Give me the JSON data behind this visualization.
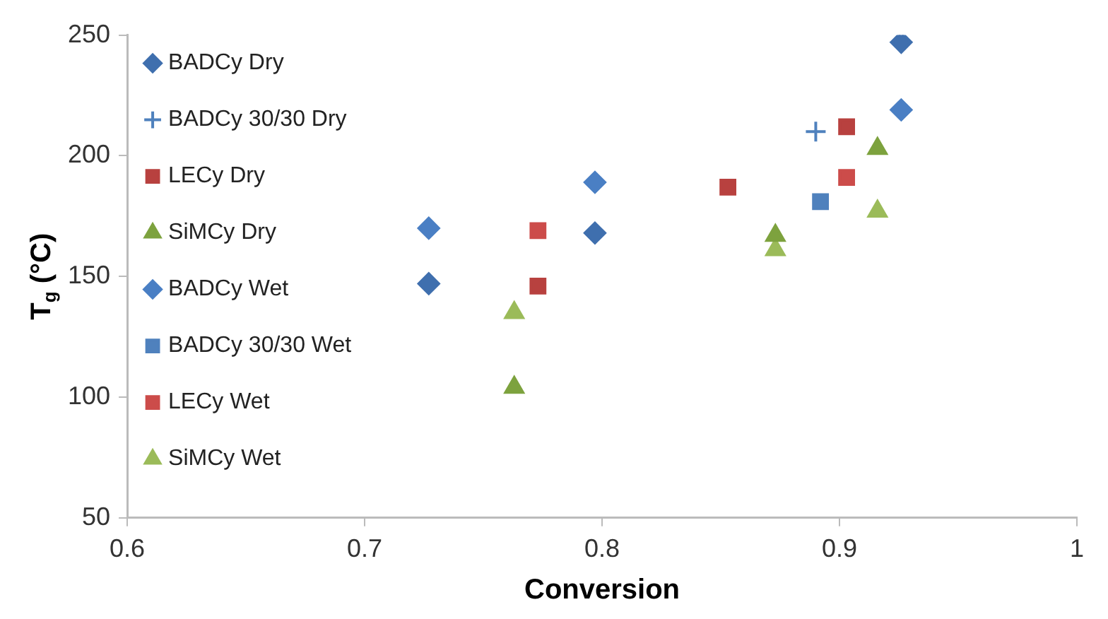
{
  "chart_data": {
    "type": "scatter",
    "xlabel": "Conversion",
    "ylabel": "T$_{g}$ (°C)",
    "xlim": [
      0.6,
      1
    ],
    "xticks": [
      0.6,
      0.7,
      0.8,
      0.9,
      1
    ],
    "ylim": [
      50,
      250
    ],
    "yticks": [
      50,
      100,
      150,
      200,
      250
    ],
    "grid": false,
    "legend": "top left",
    "series": [
      {
        "name": "BADCy Dry",
        "color": "#3f6fae",
        "marker": "diamond",
        "x": [
          0.727,
          0.797,
          0.926
        ],
        "values": [
          147,
          168,
          247
        ]
      },
      {
        "name": "BADCy 30/30 Dry",
        "color": "#4f81bd",
        "marker": "cross",
        "x": [
          0.89
        ],
        "values": [
          210
        ]
      },
      {
        "name": "LECy Dry",
        "color": "#b8413f",
        "marker": "square",
        "x": [
          0.773,
          0.853,
          0.903
        ],
        "values": [
          146,
          187,
          212
        ]
      },
      {
        "name": "SiMCy Dry",
        "color": "#7da23e",
        "marker": "triangle",
        "x": [
          0.763,
          0.873,
          0.916
        ],
        "values": [
          104,
          167,
          203
        ]
      },
      {
        "name": "BADCy Wet",
        "color": "#4a7fc4",
        "marker": "diamond",
        "x": [
          0.727,
          0.797,
          0.926
        ],
        "values": [
          170,
          189,
          219
        ]
      },
      {
        "name": "BADCy 30/30 Wet",
        "color": "#4f81bd",
        "marker": "square",
        "x": [
          0.892
        ],
        "values": [
          181
        ]
      },
      {
        "name": "LECy Wet",
        "color": "#cc4c4a",
        "marker": "square",
        "x": [
          0.773,
          0.903
        ],
        "values": [
          169,
          191
        ]
      },
      {
        "name": "SiMCy Wet",
        "color": "#9bbb59",
        "marker": "triangle",
        "x": [
          0.763,
          0.873,
          0.916
        ],
        "values": [
          135,
          161,
          177
        ]
      }
    ]
  }
}
